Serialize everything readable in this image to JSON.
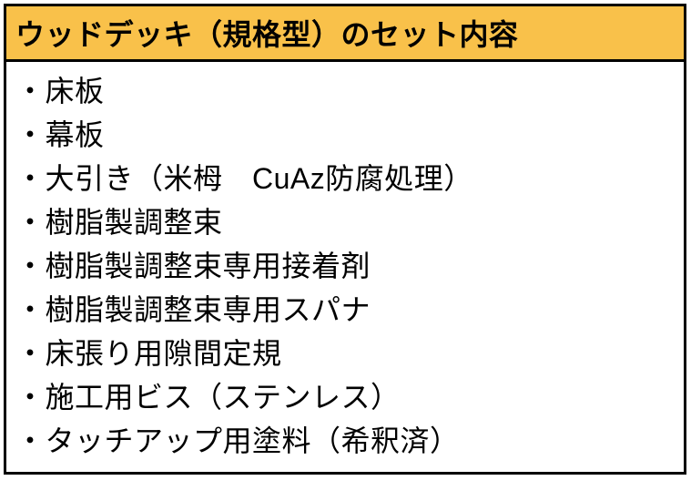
{
  "table": {
    "header": "ウッドデッキ（規格型）のセット内容",
    "header_bg_color": "#f9c14a",
    "border_color": "#000000",
    "text_color": "#000000",
    "bg_color": "#ffffff",
    "header_fontsize": 32,
    "item_fontsize": 32,
    "items": [
      "・床板",
      "・幕板",
      "・大引き（米栂　CuAz防腐処理）",
      "・樹脂製調整束",
      "・樹脂製調整束専用接着剤",
      "・樹脂製調整束専用スパナ",
      "・床張り用隙間定規",
      "・施工用ビス（ステンレス）",
      "・タッチアップ用塗料（希釈済）"
    ]
  }
}
